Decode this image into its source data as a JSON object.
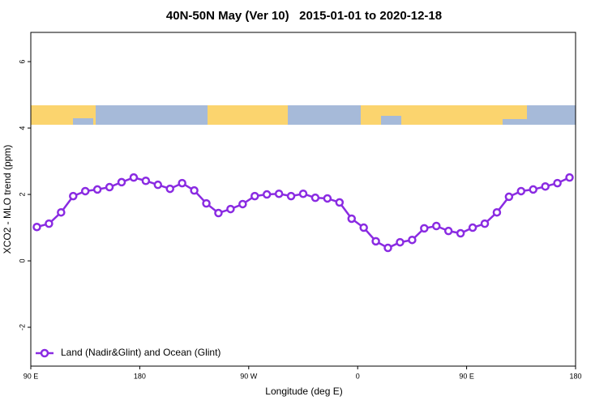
{
  "chart_data": {
    "type": "line",
    "title": "40N-50N May (Ver 10)   2015-01-01 to 2020-12-18",
    "x_label": "Longitude (deg E)",
    "y_label": "XCO2 - MLO trend (ppm)",
    "x": [
      95,
      105,
      115,
      125,
      135,
      145,
      155,
      165,
      175,
      185,
      195,
      205,
      215,
      225,
      235,
      245,
      255,
      265,
      275,
      285,
      295,
      305,
      315,
      325,
      335,
      345,
      355,
      365,
      375,
      385,
      395,
      405,
      415,
      425,
      435,
      445,
      455,
      465,
      475,
      485,
      495,
      505,
      515,
      525,
      535
    ],
    "series": [
      {
        "name": "Land (Nadir&Glint) and Ocean (Glint)",
        "color": "#8a2be2",
        "values": [
          1.02,
          1.12,
          1.46,
          1.95,
          2.1,
          2.15,
          2.22,
          2.37,
          2.51,
          2.41,
          2.29,
          2.17,
          2.34,
          2.12,
          1.73,
          1.44,
          1.56,
          1.71,
          1.95,
          2.0,
          2.02,
          1.95,
          2.02,
          1.9,
          1.88,
          1.76,
          1.27,
          1.0,
          0.59,
          0.39,
          0.56,
          0.63,
          0.98,
          1.05,
          0.9,
          0.83,
          1.0,
          1.12,
          1.46,
          1.93,
          2.1,
          2.15,
          2.24,
          2.34,
          2.51
        ]
      }
    ],
    "xlim": [
      90,
      540
    ],
    "xticks": [
      {
        "value": 90,
        "label": "90 E"
      },
      180,
      {
        "value": 270,
        "label": "90 W"
      },
      {
        "value": 360,
        "label": "0"
      },
      {
        "value": 450,
        "label": "90 E"
      },
      {
        "value": 540,
        "label": "180"
      }
    ],
    "ylim": [
      -3.17,
      6.88
    ],
    "yticks": [
      -2,
      0,
      2,
      4,
      6
    ],
    "legend": "bottom-left"
  }
}
